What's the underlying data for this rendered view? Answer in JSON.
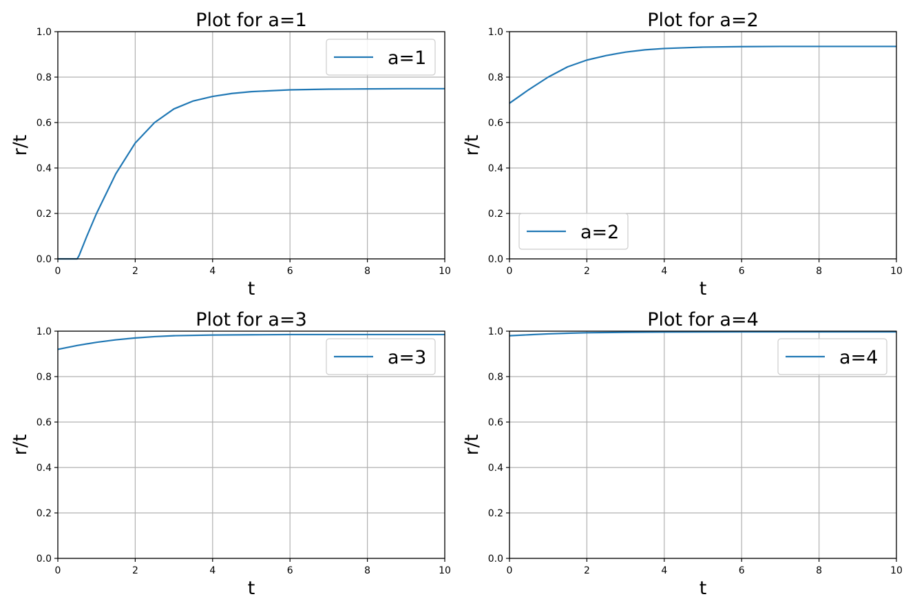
{
  "line_color": "#1f77b4",
  "grid_color": "#b0b0b0",
  "chart_data": [
    {
      "type": "line",
      "title": "Plot for a=1",
      "xlabel": "t",
      "ylabel": "r/t",
      "xlim": [
        0,
        10
      ],
      "ylim": [
        0,
        1
      ],
      "xticks": [
        "0",
        "2",
        "4",
        "6",
        "8",
        "10"
      ],
      "yticks": [
        "0.0",
        "0.2",
        "0.4",
        "0.6",
        "0.8",
        "1.0"
      ],
      "grid": true,
      "legend_position": "upper right",
      "series": [
        {
          "name": "a=1",
          "x": [
            0,
            0.5,
            0.55,
            0.75,
            1.0,
            1.5,
            2.0,
            2.5,
            3.0,
            3.5,
            4.0,
            4.5,
            5.0,
            6.0,
            7.0,
            8.0,
            9.0,
            10.0
          ],
          "y": [
            0.0,
            0.0,
            0.015,
            0.1,
            0.2,
            0.375,
            0.51,
            0.6,
            0.66,
            0.695,
            0.715,
            0.728,
            0.736,
            0.744,
            0.747,
            0.748,
            0.749,
            0.749
          ]
        }
      ]
    },
    {
      "type": "line",
      "title": "Plot for a=2",
      "xlabel": "t",
      "ylabel": "r/t",
      "xlim": [
        0,
        10
      ],
      "ylim": [
        0,
        1
      ],
      "xticks": [
        "0",
        "2",
        "4",
        "6",
        "8",
        "10"
      ],
      "yticks": [
        "0.0",
        "0.2",
        "0.4",
        "0.6",
        "0.8",
        "1.0"
      ],
      "grid": true,
      "legend_position": "lower left",
      "series": [
        {
          "name": "a=2",
          "x": [
            0,
            0.5,
            1.0,
            1.5,
            2.0,
            2.5,
            3.0,
            3.5,
            4.0,
            5.0,
            6.0,
            7.0,
            8.0,
            9.0,
            10.0
          ],
          "y": [
            0.685,
            0.745,
            0.8,
            0.845,
            0.875,
            0.895,
            0.91,
            0.92,
            0.926,
            0.932,
            0.934,
            0.935,
            0.935,
            0.935,
            0.935
          ]
        }
      ]
    },
    {
      "type": "line",
      "title": "Plot for a=3",
      "xlabel": "t",
      "ylabel": "r/t",
      "xlim": [
        0,
        10
      ],
      "ylim": [
        0,
        1
      ],
      "xticks": [
        "0",
        "2",
        "4",
        "6",
        "8",
        "10"
      ],
      "yticks": [
        "0.0",
        "0.2",
        "0.4",
        "0.6",
        "0.8",
        "1.0"
      ],
      "grid": true,
      "legend_position": "upper right",
      "series": [
        {
          "name": "a=3",
          "x": [
            0,
            0.5,
            1.0,
            1.5,
            2.0,
            2.5,
            3.0,
            4.0,
            5.0,
            6.0,
            8.0,
            10.0
          ],
          "y": [
            0.92,
            0.937,
            0.951,
            0.962,
            0.97,
            0.976,
            0.98,
            0.983,
            0.984,
            0.985,
            0.985,
            0.985
          ]
        }
      ]
    },
    {
      "type": "line",
      "title": "Plot for a=4",
      "xlabel": "t",
      "ylabel": "r/t",
      "xlim": [
        0,
        10
      ],
      "ylim": [
        0,
        1
      ],
      "xticks": [
        "0",
        "2",
        "4",
        "6",
        "8",
        "10"
      ],
      "yticks": [
        "0.0",
        "0.2",
        "0.4",
        "0.6",
        "0.8",
        "1.0"
      ],
      "grid": true,
      "legend_position": "upper right",
      "series": [
        {
          "name": "a=4",
          "x": [
            0,
            0.5,
            1.0,
            1.5,
            2.0,
            3.0,
            4.0,
            6.0,
            8.0,
            10.0
          ],
          "y": [
            0.98,
            0.984,
            0.988,
            0.991,
            0.993,
            0.995,
            0.996,
            0.997,
            0.997,
            0.997
          ]
        }
      ]
    }
  ]
}
